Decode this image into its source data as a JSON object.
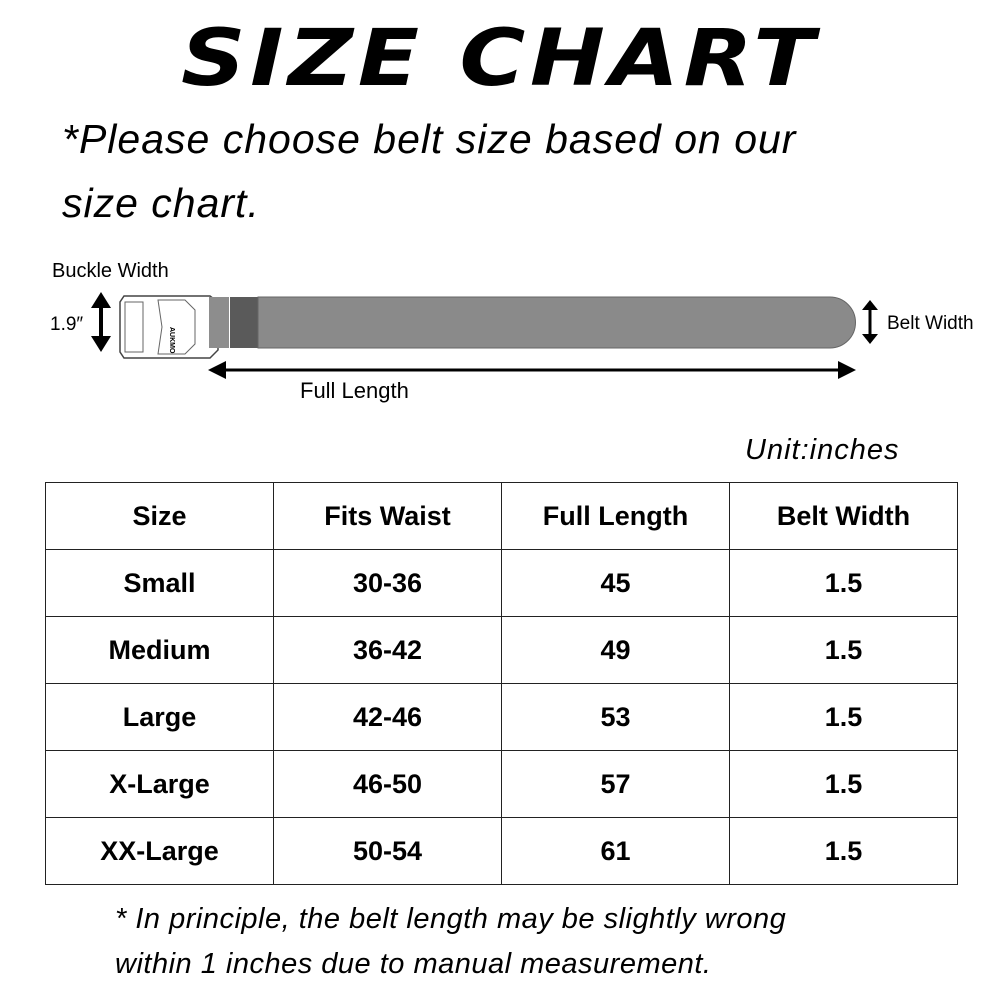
{
  "title": "SIZE CHART",
  "subtitle": [
    "*Please choose belt size based on our",
    "size chart."
  ],
  "diagram": {
    "buckle_width_label": "Buckle Width",
    "buckle_width_value": "1.9″",
    "belt_width_label": "Belt Width",
    "full_length_label": "Full Length",
    "buckle_logo": "AUKMO",
    "belt_color": "#8a8a8a"
  },
  "unit": "Unit:inches",
  "table": {
    "headers": [
      "Size",
      "Fits Waist",
      "Full Length",
      "Belt Width"
    ],
    "rows": [
      [
        "Small",
        "30-36",
        "45",
        "1.5"
      ],
      [
        "Medium",
        "36-42",
        "49",
        "1.5"
      ],
      [
        "Large",
        "42-46",
        "53",
        "1.5"
      ],
      [
        "X-Large",
        "46-50",
        "57",
        "1.5"
      ],
      [
        "XX-Large",
        "50-54",
        "61",
        "1.5"
      ]
    ]
  },
  "note": [
    "* In principle, the belt length may be slightly wrong",
    "within 1 inches due to manual measurement."
  ]
}
